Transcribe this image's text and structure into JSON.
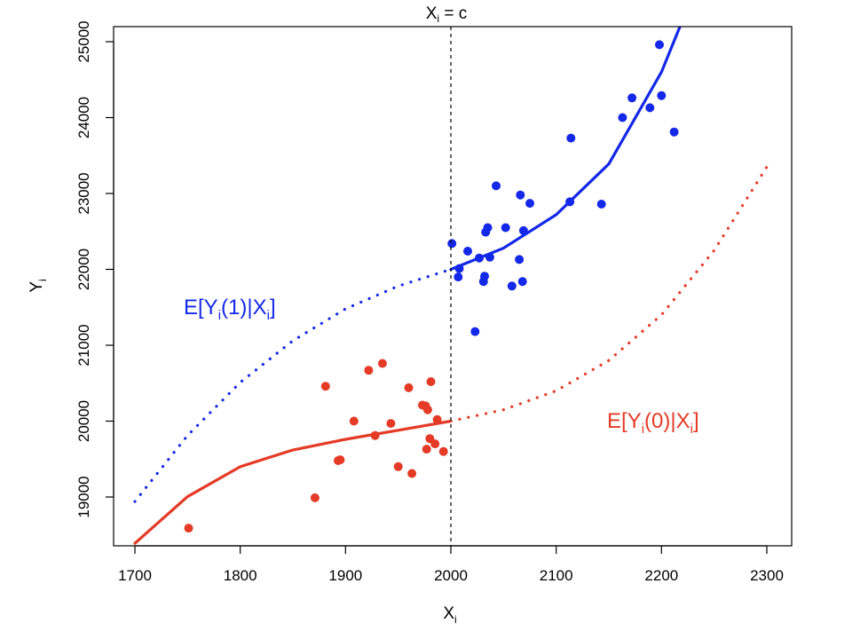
{
  "chart_data": {
    "type": "scatter",
    "xlabel": {
      "main": "X",
      "sub": "i"
    },
    "ylabel": {
      "main": "Y",
      "sub": "i"
    },
    "xlim": [
      1700,
      2300
    ],
    "ylim": [
      18500,
      25000
    ],
    "x_ticks": [
      1700,
      1800,
      1900,
      2000,
      2100,
      2200,
      2300
    ],
    "y_ticks": [
      19000,
      20000,
      21000,
      22000,
      23000,
      24000,
      25000
    ],
    "grid": false,
    "cutoff": {
      "x": 2000,
      "label_main": "X",
      "label_sub": "i",
      "label_rest": " = c"
    },
    "colors": {
      "treated": "#1328e8",
      "control": "#e53a26",
      "axis": "#000000"
    },
    "series": [
      {
        "key": "control",
        "color": "#e53a26",
        "label_parts": [
          "E[Y",
          "i",
          "(0)|X",
          "i",
          "]"
        ],
        "points": [
          [
            1751,
            18590
          ],
          [
            1871,
            18990
          ],
          [
            1881,
            20460
          ],
          [
            1893,
            19480
          ],
          [
            1895,
            19490
          ],
          [
            1908,
            20000
          ],
          [
            1922,
            20670
          ],
          [
            1928,
            19810
          ],
          [
            1935,
            20760
          ],
          [
            1943,
            19970
          ],
          [
            1950,
            19400
          ],
          [
            1960,
            20440
          ],
          [
            1963,
            19310
          ],
          [
            1973,
            20210
          ],
          [
            1976,
            20200
          ],
          [
            1977,
            19630
          ],
          [
            1978,
            20150
          ],
          [
            1980,
            19770
          ],
          [
            1981,
            20520
          ],
          [
            1985,
            19700
          ],
          [
            1987,
            20020
          ],
          [
            1993,
            19600
          ]
        ],
        "curve_solid": [
          [
            1700,
            18390
          ],
          [
            1750,
            19005
          ],
          [
            1800,
            19400
          ],
          [
            1850,
            19620
          ],
          [
            1900,
            19760
          ],
          [
            1950,
            19880
          ],
          [
            2000,
            20000
          ]
        ],
        "curve_dotted": [
          [
            2000,
            20000
          ],
          [
            2050,
            20150
          ],
          [
            2100,
            20400
          ],
          [
            2150,
            20800
          ],
          [
            2200,
            21400
          ],
          [
            2250,
            22250
          ],
          [
            2300,
            23350
          ]
        ]
      },
      {
        "key": "treated",
        "color": "#1328e8",
        "label_parts": [
          "E[Y",
          "i",
          "(1)|X",
          "i",
          "]"
        ],
        "points": [
          [
            2001,
            22340
          ],
          [
            2007,
            21900
          ],
          [
            2008,
            22010
          ],
          [
            2016,
            22240
          ],
          [
            2023,
            21180
          ],
          [
            2027,
            22150
          ],
          [
            2031,
            21840
          ],
          [
            2032,
            21910
          ],
          [
            2033,
            22490
          ],
          [
            2035,
            22550
          ],
          [
            2037,
            22160
          ],
          [
            2043,
            23100
          ],
          [
            2052,
            22550
          ],
          [
            2058,
            21780
          ],
          [
            2065,
            22130
          ],
          [
            2066,
            22980
          ],
          [
            2068,
            21840
          ],
          [
            2069,
            22510
          ],
          [
            2075,
            22870
          ],
          [
            2113,
            22890
          ],
          [
            2114,
            23730
          ],
          [
            2143,
            22860
          ],
          [
            2163,
            24000
          ],
          [
            2172,
            24260
          ],
          [
            2189,
            24130
          ],
          [
            2198,
            24960
          ],
          [
            2200,
            24290
          ],
          [
            2212,
            23810
          ]
        ],
        "curve_dotted": [
          [
            1700,
            18940
          ],
          [
            1750,
            19810
          ],
          [
            1800,
            20510
          ],
          [
            1850,
            21060
          ],
          [
            1900,
            21480
          ],
          [
            1950,
            21780
          ],
          [
            2000,
            22000
          ]
        ],
        "curve_solid": [
          [
            2000,
            22000
          ],
          [
            2050,
            22280
          ],
          [
            2100,
            22720
          ],
          [
            2150,
            23390
          ],
          [
            2200,
            24600
          ],
          [
            2219,
            25250
          ]
        ]
      }
    ]
  }
}
